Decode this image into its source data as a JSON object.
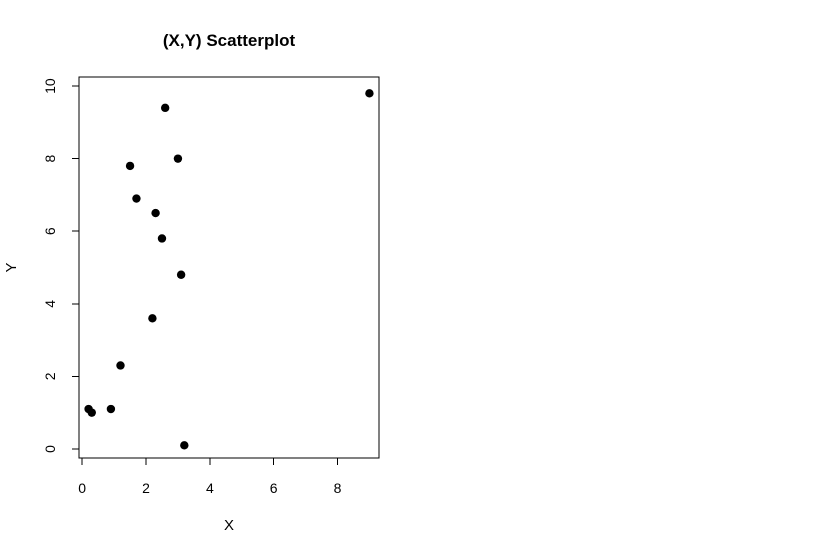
{
  "chart_data": {
    "type": "scatter",
    "title": "(X,Y) Scatterplot",
    "xlabel": "X",
    "ylabel": "Y",
    "xlim": [
      0,
      9
    ],
    "ylim": [
      0,
      10
    ],
    "xticks": [
      0,
      2,
      4,
      6,
      8
    ],
    "yticks": [
      0,
      2,
      4,
      6,
      8,
      10
    ],
    "xtick_labels": [
      "0",
      "2",
      "4",
      "6",
      "8"
    ],
    "ytick_labels": [
      "0",
      "2",
      "4",
      "6",
      "8",
      "10"
    ],
    "grid": false,
    "legend": "none",
    "points": [
      {
        "x": 0.2,
        "y": 1.1
      },
      {
        "x": 0.3,
        "y": 1.0
      },
      {
        "x": 0.9,
        "y": 1.1
      },
      {
        "x": 1.2,
        "y": 2.3
      },
      {
        "x": 1.5,
        "y": 7.8
      },
      {
        "x": 1.7,
        "y": 6.9
      },
      {
        "x": 2.2,
        "y": 3.6
      },
      {
        "x": 2.3,
        "y": 6.5
      },
      {
        "x": 2.5,
        "y": 5.8
      },
      {
        "x": 2.6,
        "y": 9.4
      },
      {
        "x": 3.0,
        "y": 8.0
      },
      {
        "x": 3.1,
        "y": 4.8
      },
      {
        "x": 3.2,
        "y": 0.1
      },
      {
        "x": 9.0,
        "y": 9.8
      }
    ],
    "colors": {
      "points": "#000000",
      "axes": "#000000",
      "text": "#000000",
      "background": "#ffffff"
    }
  }
}
